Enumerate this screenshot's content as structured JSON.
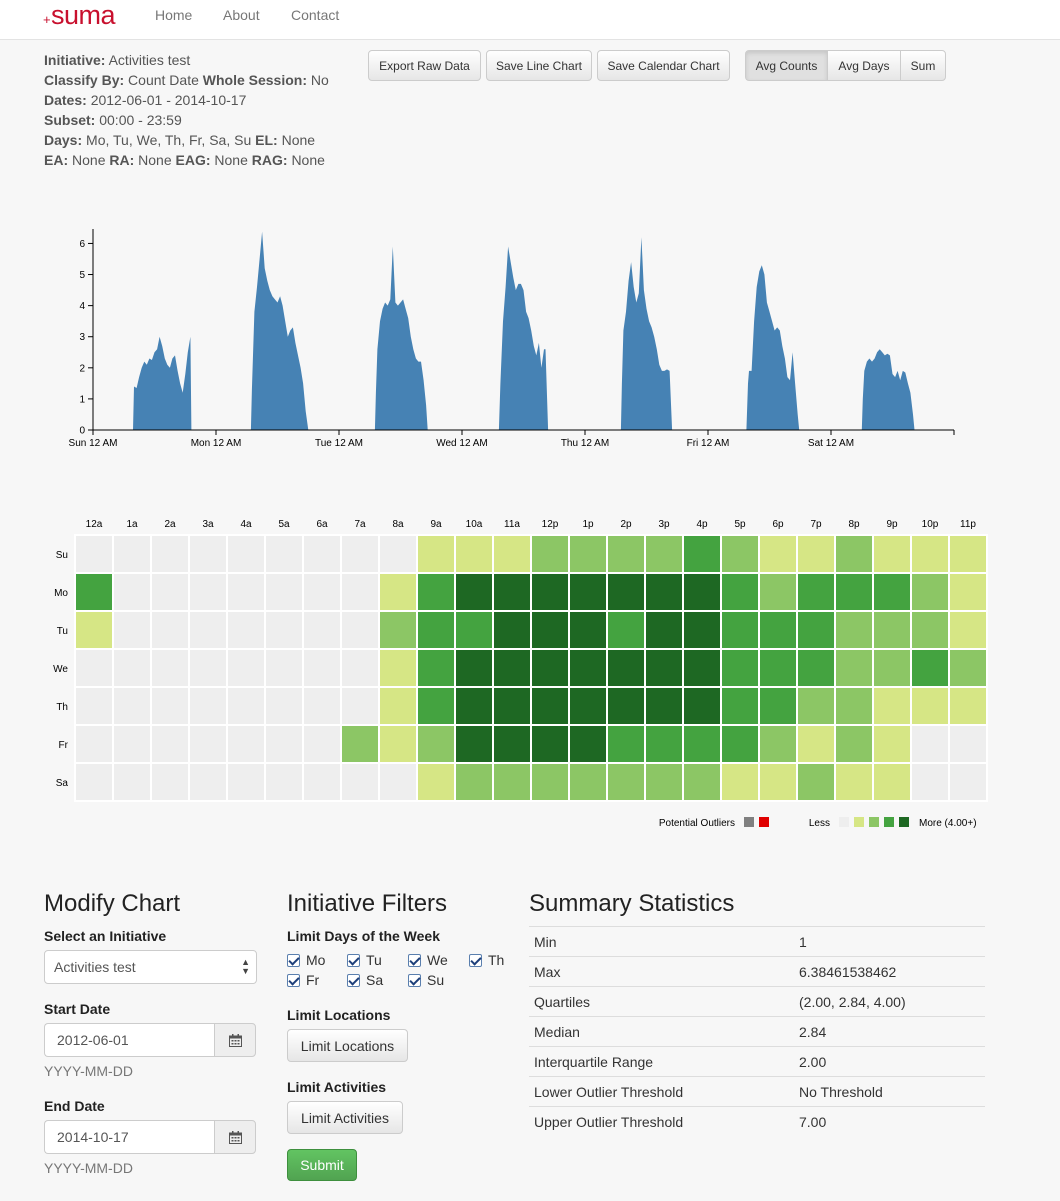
{
  "nav": {
    "brand_plus": "+",
    "brand_name": "suma",
    "links": [
      "Home",
      "About",
      "Contact"
    ]
  },
  "info": {
    "initiative_label": "Initiative:",
    "initiative": "Activities test",
    "classify_label": "Classify By:",
    "classify": "Count Date",
    "whole_session_label": "Whole Session:",
    "whole_session": "No",
    "dates_label": "Dates:",
    "dates": "2012-06-01 - 2014-10-17",
    "subset_label": "Subset:",
    "subset": "00:00 - 23:59",
    "days_label": "Days:",
    "days": "Mo, Tu, We, Th, Fr, Sa, Su",
    "el_label": "EL:",
    "el": "None",
    "ea_label": "EA:",
    "ea": "None",
    "ra_label": "RA:",
    "ra": "None",
    "eag_label": "EAG:",
    "eag": "None",
    "rag_label": "RAG:",
    "rag": "None"
  },
  "toolbar": {
    "export": "Export Raw Data",
    "save_line": "Save Line Chart",
    "save_calendar": "Save Calendar Chart",
    "avg_counts": "Avg Counts",
    "avg_days": "Avg Days",
    "sum": "Sum",
    "active": "Avg Counts"
  },
  "chart_data": [
    {
      "type": "area",
      "title": "",
      "color": "#4682b4",
      "ylim": [
        0,
        6.4
      ],
      "yticks": [
        0,
        1,
        2,
        3,
        4,
        5,
        6
      ],
      "x_tick_labels": [
        "Sun 12 AM",
        "Mon 12 AM",
        "Tue 12 AM",
        "Wed 12 AM",
        "Thu 12 AM",
        "Fri 12 AM",
        "Sat 12 AM"
      ],
      "x_hours_range": [
        0,
        168
      ],
      "series": [
        {
          "points": [
            [
              0,
              0
            ],
            [
              7.8,
              0
            ],
            [
              8,
              1.4
            ],
            [
              8.5,
              1.35
            ],
            [
              9,
              1.7
            ],
            [
              9.5,
              2.0
            ],
            [
              10,
              2.2
            ],
            [
              10.5,
              2.1
            ],
            [
              11,
              2.3
            ],
            [
              11.5,
              2.25
            ],
            [
              12,
              2.5
            ],
            [
              12.5,
              2.6
            ],
            [
              13,
              3.0
            ],
            [
              13.5,
              2.7
            ],
            [
              14,
              2.3
            ],
            [
              14.5,
              2.1
            ],
            [
              15,
              2.0
            ],
            [
              15.5,
              2.3
            ],
            [
              16,
              2.4
            ],
            [
              16.5,
              1.9
            ],
            [
              17,
              1.5
            ],
            [
              17.5,
              1.2
            ],
            [
              18,
              1.8
            ],
            [
              18.5,
              2.5
            ],
            [
              19,
              3.0
            ],
            [
              19.2,
              0
            ],
            [
              30.8,
              0
            ],
            [
              31,
              1.3
            ],
            [
              31.5,
              3.8
            ],
            [
              32,
              4.6
            ],
            [
              32.5,
              5.5
            ],
            [
              33,
              6.38
            ],
            [
              33.5,
              5.2
            ],
            [
              34,
              4.8
            ],
            [
              34.5,
              4.5
            ],
            [
              35,
              4.3
            ],
            [
              35.5,
              4.2
            ],
            [
              36,
              4.1
            ],
            [
              36.5,
              4.3
            ],
            [
              37,
              4.0
            ],
            [
              37.5,
              3.5
            ],
            [
              38,
              3.0
            ],
            [
              38.5,
              3.2
            ],
            [
              39,
              3.3
            ],
            [
              39.5,
              2.8
            ],
            [
              40,
              2.4
            ],
            [
              40.5,
              2.0
            ],
            [
              41,
              1.5
            ],
            [
              41.5,
              0.6
            ],
            [
              42,
              0
            ],
            [
              55,
              0
            ],
            [
              55.2,
              1.2
            ],
            [
              55.5,
              2.6
            ],
            [
              56,
              3.5
            ],
            [
              56.5,
              3.9
            ],
            [
              57,
              4.1
            ],
            [
              57.5,
              4.0
            ],
            [
              58,
              4.2
            ],
            [
              58.5,
              5.9
            ],
            [
              59,
              4.1
            ],
            [
              59.5,
              4.0
            ],
            [
              60,
              4.1
            ],
            [
              60.5,
              4.2
            ],
            [
              61,
              3.9
            ],
            [
              61.5,
              3.6
            ],
            [
              62,
              3.0
            ],
            [
              62.5,
              2.6
            ],
            [
              63,
              2.3
            ],
            [
              63.5,
              2.2
            ],
            [
              64,
              2.2
            ],
            [
              64.5,
              1.6
            ],
            [
              65,
              0.8
            ],
            [
              65.3,
              0
            ],
            [
              79.2,
              0
            ],
            [
              79.5,
              1.5
            ],
            [
              80,
              3.5
            ],
            [
              80.5,
              4.6
            ],
            [
              81,
              5.9
            ],
            [
              81.5,
              5.4
            ],
            [
              82,
              4.9
            ],
            [
              82.5,
              4.5
            ],
            [
              83,
              4.7
            ],
            [
              83.5,
              4.7
            ],
            [
              84,
              4.5
            ],
            [
              84.5,
              3.8
            ],
            [
              85,
              3.6
            ],
            [
              85.5,
              3.2
            ],
            [
              86,
              2.7
            ],
            [
              86.5,
              2.4
            ],
            [
              87,
              2.8
            ],
            [
              87.5,
              2.0
            ],
            [
              88,
              2.6
            ],
            [
              88.3,
              2.6
            ],
            [
              88.8,
              0
            ],
            [
              103,
              0
            ],
            [
              103.2,
              1.5
            ],
            [
              103.5,
              3.2
            ],
            [
              104,
              3.8
            ],
            [
              104.5,
              4.8
            ],
            [
              105,
              5.4
            ],
            [
              105.5,
              4.6
            ],
            [
              106,
              4.1
            ],
            [
              106.5,
              4.4
            ],
            [
              107,
              6.2
            ],
            [
              107.5,
              4.5
            ],
            [
              108,
              3.9
            ],
            [
              108.5,
              3.5
            ],
            [
              109,
              3.3
            ],
            [
              109.5,
              3.0
            ],
            [
              110,
              2.6
            ],
            [
              110.5,
              2.1
            ],
            [
              111,
              1.9
            ],
            [
              111.5,
              1.9
            ],
            [
              112,
              1.95
            ],
            [
              112.5,
              1.9
            ],
            [
              113,
              0
            ],
            [
              127.5,
              0
            ],
            [
              127.8,
              1.5
            ],
            [
              128,
              1.9
            ],
            [
              128.5,
              1.9
            ],
            [
              129,
              3.5
            ],
            [
              129.5,
              4.6
            ],
            [
              130,
              5.1
            ],
            [
              130.5,
              5.3
            ],
            [
              131,
              5.0
            ],
            [
              131.5,
              4.1
            ],
            [
              132,
              3.8
            ],
            [
              132.5,
              3.5
            ],
            [
              133,
              3.2
            ],
            [
              133.5,
              3.3
            ],
            [
              134,
              3.2
            ],
            [
              134.5,
              2.7
            ],
            [
              135,
              2.3
            ],
            [
              135.5,
              1.7
            ],
            [
              136,
              1.6
            ],
            [
              136.5,
              2.5
            ],
            [
              137,
              1.5
            ],
            [
              137.5,
              0.5
            ],
            [
              137.8,
              0
            ],
            [
              150,
              0
            ],
            [
              150.2,
              1.0
            ],
            [
              150.5,
              1.9
            ],
            [
              151,
              2.2
            ],
            [
              151.5,
              2.3
            ],
            [
              152,
              2.2
            ],
            [
              152.5,
              2.3
            ],
            [
              153,
              2.5
            ],
            [
              153.5,
              2.6
            ],
            [
              154,
              2.5
            ],
            [
              154.5,
              2.4
            ],
            [
              155,
              2.45
            ],
            [
              155.5,
              2.4
            ],
            [
              156,
              1.8
            ],
            [
              156.5,
              1.7
            ],
            [
              157,
              1.9
            ],
            [
              157.5,
              1.6
            ],
            [
              158,
              1.9
            ],
            [
              158.5,
              1.85
            ],
            [
              159,
              1.5
            ],
            [
              159.5,
              1.2
            ],
            [
              160,
              0.5
            ],
            [
              160.3,
              0
            ],
            [
              168,
              0
            ]
          ]
        }
      ]
    },
    {
      "type": "heatmap",
      "columns": [
        "12a",
        "1a",
        "2a",
        "3a",
        "4a",
        "5a",
        "6a",
        "7a",
        "8a",
        "9a",
        "10a",
        "11a",
        "12p",
        "1p",
        "2p",
        "3p",
        "4p",
        "5p",
        "6p",
        "7p",
        "8p",
        "9p",
        "10p",
        "11p"
      ],
      "rows": [
        "Su",
        "Mo",
        "Tu",
        "We",
        "Th",
        "Fr",
        "Sa"
      ],
      "levels": [
        [
          0,
          0,
          0,
          0,
          0,
          0,
          0,
          0,
          0,
          1,
          1,
          1,
          2,
          2,
          2,
          2,
          3,
          2,
          1,
          1,
          2,
          1,
          1,
          1
        ],
        [
          3,
          0,
          0,
          0,
          0,
          0,
          0,
          0,
          1,
          3,
          4,
          4,
          4,
          4,
          4,
          4,
          4,
          3,
          2,
          3,
          3,
          3,
          2,
          1
        ],
        [
          1,
          0,
          0,
          0,
          0,
          0,
          0,
          0,
          2,
          3,
          3,
          4,
          4,
          4,
          3,
          4,
          4,
          3,
          3,
          3,
          2,
          2,
          2,
          1
        ],
        [
          0,
          0,
          0,
          0,
          0,
          0,
          0,
          0,
          1,
          3,
          4,
          4,
          4,
          4,
          4,
          4,
          4,
          3,
          3,
          3,
          2,
          2,
          3,
          2
        ],
        [
          0,
          0,
          0,
          0,
          0,
          0,
          0,
          0,
          1,
          3,
          4,
          4,
          4,
          4,
          4,
          4,
          4,
          3,
          3,
          2,
          2,
          1,
          1,
          1
        ],
        [
          0,
          0,
          0,
          0,
          0,
          0,
          0,
          2,
          1,
          2,
          4,
          4,
          4,
          4,
          3,
          3,
          3,
          3,
          2,
          1,
          2,
          1,
          0,
          0
        ],
        [
          0,
          0,
          0,
          0,
          0,
          0,
          0,
          0,
          0,
          1,
          2,
          2,
          2,
          2,
          2,
          2,
          2,
          1,
          1,
          2,
          1,
          1,
          0,
          0
        ]
      ],
      "colors": [
        "#eeeeee",
        "#d6e685",
        "#8cc665",
        "#44a340",
        "#1e6823"
      ],
      "legend": {
        "outliers_label": "Potential Outliers",
        "outlier_colors": [
          "#808080",
          "#e00000"
        ],
        "less_label": "Less",
        "more_label": "More (4.00+)"
      }
    }
  ],
  "modify": {
    "title": "Modify Chart",
    "select_label": "Select an Initiative",
    "select_value": "Activities test",
    "start_label": "Start Date",
    "start_value": "2012-06-01",
    "start_help": "YYYY-MM-DD",
    "end_label": "End Date",
    "end_value": "2014-10-17",
    "end_help": "YYYY-MM-DD"
  },
  "filters": {
    "title": "Initiative Filters",
    "days_label": "Limit Days of the Week",
    "days": [
      "Mo",
      "Tu",
      "We",
      "Th",
      "Fr",
      "Sa",
      "Su"
    ],
    "locations_label": "Limit Locations",
    "locations_button": "Limit Locations",
    "activities_label": "Limit Activities",
    "activities_button": "Limit Activities",
    "submit": "Submit"
  },
  "stats": {
    "title": "Summary Statistics",
    "rows": [
      {
        "k": "Min",
        "v": "1"
      },
      {
        "k": "Max",
        "v": "6.38461538462"
      },
      {
        "k": "Quartiles",
        "v": "(2.00, 2.84, 4.00)"
      },
      {
        "k": "Median",
        "v": "2.84"
      },
      {
        "k": "Interquartile Range",
        "v": "2.00"
      },
      {
        "k": "Lower Outlier Threshold",
        "v": "No Threshold"
      },
      {
        "k": "Upper Outlier Threshold",
        "v": "7.00"
      }
    ]
  }
}
